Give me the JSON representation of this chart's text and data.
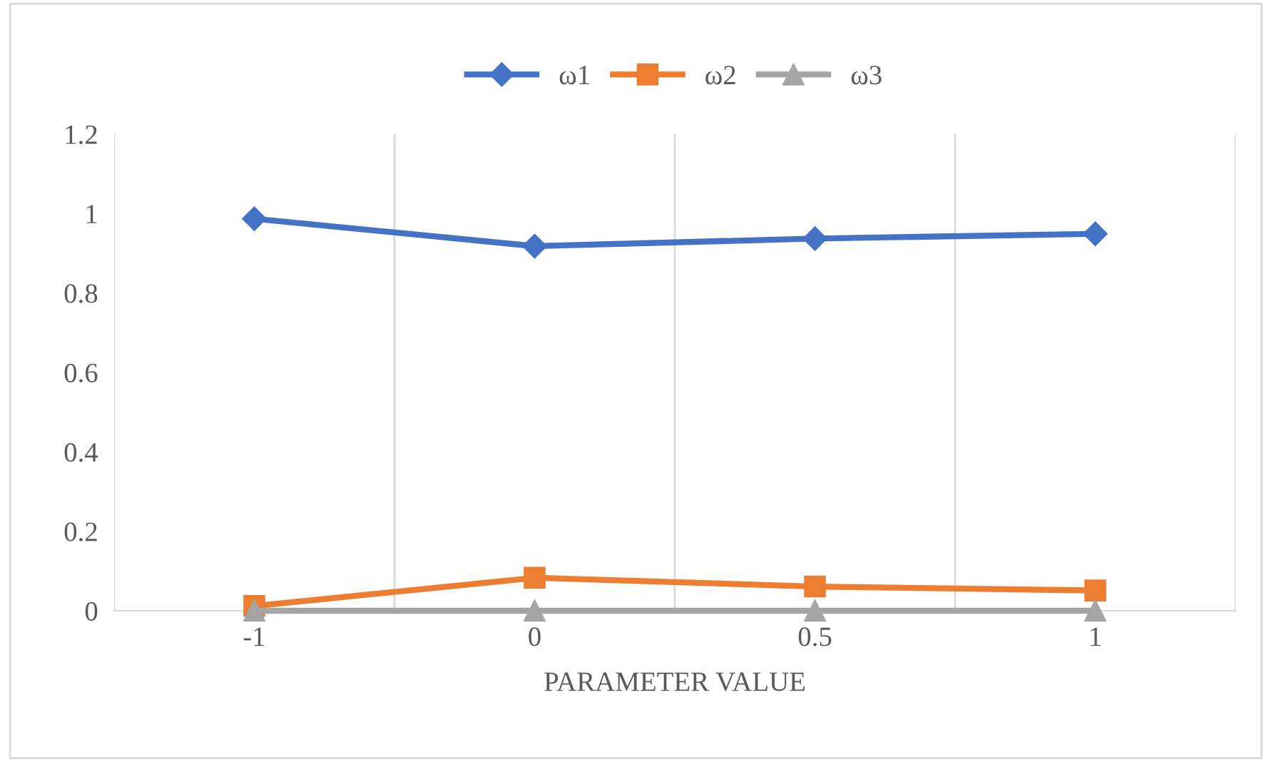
{
  "chart_data": {
    "type": "line",
    "xlabel": "PARAMETER VALUE",
    "categories": [
      "-1",
      "0",
      "0.5",
      "1"
    ],
    "series": [
      {
        "name": "ω1",
        "color": "#4472c4",
        "marker": "diamond",
        "values": [
          0.987,
          0.918,
          0.937,
          0.949
        ]
      },
      {
        "name": "ω2",
        "color": "#ed7d31",
        "marker": "square",
        "values": [
          0.012,
          0.083,
          0.061,
          0.051
        ]
      },
      {
        "name": "ω3",
        "color": "#a5a5a5",
        "marker": "triangle",
        "values": [
          0,
          0,
          0,
          0
        ]
      }
    ],
    "ylim": [
      0,
      1.2
    ],
    "yticks": [
      0,
      0.2,
      0.4,
      0.6,
      0.8,
      1,
      1.2
    ],
    "grid": "x",
    "legend": "top",
    "line_style": "solid"
  }
}
